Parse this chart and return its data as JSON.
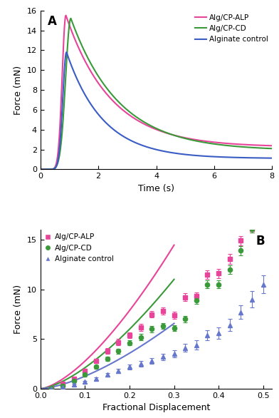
{
  "panel_A": {
    "title": "A",
    "xlabel": "Time (s)",
    "ylabel": "Force (mN)",
    "xlim": [
      0,
      8
    ],
    "ylim": [
      0,
      16
    ],
    "yticks": [
      0,
      2,
      4,
      6,
      8,
      10,
      12,
      14,
      16
    ],
    "xticks": [
      0,
      2,
      4,
      6,
      8
    ],
    "colors": {
      "ALP": "#E8449A",
      "CD": "#3A9A3A",
      "ALG": "#3A5CC5"
    },
    "legend": [
      "Alg/CP-ALP",
      "Alg/CP-CD",
      "Alginate control"
    ],
    "curves": [
      {
        "key": "ALP",
        "peak_t": 0.88,
        "peak_f": 15.5,
        "plateau_f": 2.25,
        "sigma_rise": 0.13,
        "tau_decay": 1.55
      },
      {
        "key": "CD",
        "peak_t": 1.05,
        "peak_f": 15.2,
        "plateau_f": 1.9,
        "sigma_rise": 0.18,
        "tau_decay": 1.65
      },
      {
        "key": "ALG",
        "peak_t": 0.9,
        "peak_f": 11.8,
        "plateau_f": 1.1,
        "sigma_rise": 0.13,
        "tau_decay": 1.25
      }
    ]
  },
  "panel_B": {
    "title": "B",
    "xlabel": "Fractional Displacement",
    "ylabel": "Force (mN)",
    "xlim": [
      0.0,
      0.52
    ],
    "ylim": [
      0,
      16
    ],
    "yticks": [
      0,
      5,
      10,
      15
    ],
    "xticks": [
      0.0,
      0.1,
      0.2,
      0.3,
      0.4,
      0.5
    ],
    "colors": {
      "ALP": "#E8449A",
      "CD": "#3A9A3A",
      "ALG": "#6677CC"
    },
    "legend": [
      "Alg/CP-ALP",
      "Alg/CP-CD",
      "Alginate control"
    ],
    "ALP_x": [
      0.025,
      0.05,
      0.075,
      0.1,
      0.125,
      0.15,
      0.175,
      0.2,
      0.225,
      0.25,
      0.275,
      0.3,
      0.325,
      0.35,
      0.375,
      0.4,
      0.425,
      0.45,
      0.475
    ],
    "ALP_y": [
      0.1,
      0.5,
      1.0,
      1.8,
      2.8,
      3.8,
      4.7,
      5.4,
      6.2,
      7.5,
      7.8,
      7.4,
      9.2,
      9.3,
      11.5,
      11.6,
      13.1,
      14.9,
      16.1
    ],
    "ALP_yerr": [
      0.05,
      0.1,
      0.15,
      0.2,
      0.25,
      0.3,
      0.3,
      0.3,
      0.35,
      0.35,
      0.35,
      0.35,
      0.4,
      0.4,
      0.45,
      0.45,
      0.5,
      0.5,
      0.4
    ],
    "CD_x": [
      0.025,
      0.05,
      0.075,
      0.1,
      0.125,
      0.15,
      0.175,
      0.2,
      0.225,
      0.25,
      0.275,
      0.3,
      0.325,
      0.35,
      0.375,
      0.4,
      0.425,
      0.45,
      0.475
    ],
    "CD_y": [
      0.05,
      0.3,
      0.8,
      1.4,
      2.2,
      3.0,
      3.8,
      4.6,
      5.2,
      6.0,
      6.3,
      6.1,
      7.0,
      8.9,
      10.5,
      10.5,
      12.0,
      13.9,
      16.1
    ],
    "CD_yerr": [
      0.05,
      0.1,
      0.1,
      0.15,
      0.2,
      0.2,
      0.25,
      0.25,
      0.3,
      0.3,
      0.3,
      0.3,
      0.35,
      0.35,
      0.4,
      0.4,
      0.45,
      0.45,
      0.35
    ],
    "ALG_x": [
      0.025,
      0.05,
      0.075,
      0.1,
      0.125,
      0.15,
      0.175,
      0.2,
      0.225,
      0.25,
      0.275,
      0.3,
      0.325,
      0.35,
      0.375,
      0.4,
      0.425,
      0.45,
      0.475,
      0.5
    ],
    "ALG_y": [
      0.02,
      0.12,
      0.4,
      0.7,
      1.0,
      1.4,
      1.8,
      2.2,
      2.5,
      2.8,
      3.2,
      3.5,
      4.1,
      4.4,
      5.4,
      5.6,
      6.4,
      7.7,
      9.0,
      10.5
    ],
    "ALG_yerr": [
      0.02,
      0.05,
      0.1,
      0.12,
      0.15,
      0.2,
      0.2,
      0.25,
      0.3,
      0.3,
      0.3,
      0.35,
      0.4,
      0.45,
      0.5,
      0.55,
      0.6,
      0.7,
      0.8,
      0.9
    ],
    "hertz_end": 0.3,
    "hertz_ALP_coeff": 88,
    "hertz_CD_coeff": 67,
    "hertz_ALG_coeff": 40
  }
}
